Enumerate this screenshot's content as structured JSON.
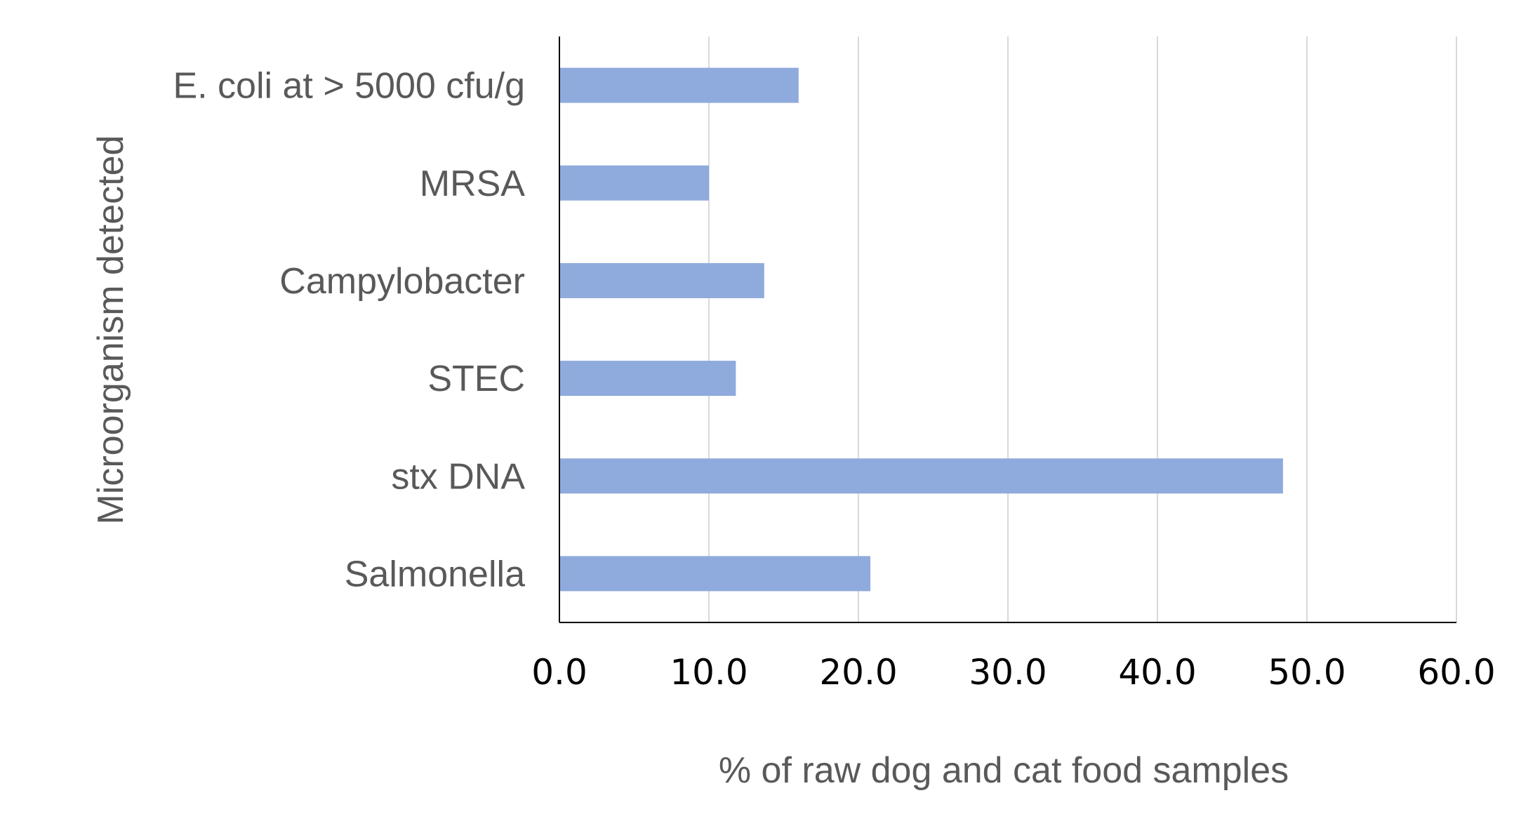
{
  "chart_data": {
    "type": "bar",
    "orientation": "horizontal",
    "title": "",
    "categories": [
      "E. coli at > 5000 cfu/g",
      "MRSA",
      "Campylobacter",
      "STEC",
      "stx DNA",
      "Salmonella"
    ],
    "values": [
      16.0,
      10.0,
      13.7,
      11.8,
      48.4,
      20.8
    ],
    "xlabel": "% of raw dog and cat food samples",
    "ylabel": "Microorganism detected",
    "xlim": [
      0,
      60
    ],
    "xticks": [
      0,
      10,
      20,
      30,
      40,
      50,
      60
    ],
    "xtick_labels": [
      "0.0",
      "10.0",
      "20.0",
      "30.0",
      "40.0",
      "50.0",
      "60.0"
    ],
    "grid": true,
    "bar_color": "#8FAADC",
    "grid_color": "#D9D9D9",
    "axis_color": "#000000"
  }
}
